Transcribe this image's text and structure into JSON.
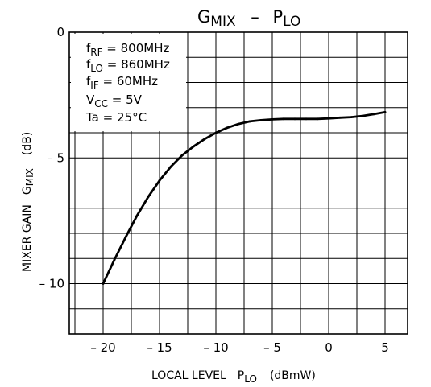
{
  "chart_data": {
    "type": "line",
    "title": {
      "main": "G",
      "main_sub": "MIX",
      "sep": "–",
      "second": "P",
      "second_sub": "LO"
    },
    "xlabel": {
      "text": "LOCAL LEVEL",
      "symbol": "P",
      "symbol_sub": "LO",
      "unit": "(dBmW)"
    },
    "ylabel": {
      "text": "MIXER GAIN",
      "symbol": "G",
      "symbol_sub": "MIX",
      "unit": "(dB)"
    },
    "xlim": [
      -23,
      7
    ],
    "ylim": [
      -12,
      0
    ],
    "x_ticks": [
      -20,
      -15,
      -10,
      -5,
      0,
      5
    ],
    "x_tick_labels": [
      "– 20",
      "– 15",
      "– 10",
      "– 5",
      "0",
      "5"
    ],
    "y_ticks": [
      0,
      -5,
      -10
    ],
    "y_tick_labels": [
      "0",
      "– 5",
      "– 10"
    ],
    "x_grid": [
      -22.5,
      -20,
      -17.5,
      -15,
      -12.5,
      -10,
      -7.5,
      -5,
      -2.5,
      0,
      2.5,
      5
    ],
    "y_grid": [
      -1,
      -2,
      -3,
      -4,
      -5,
      -6,
      -7,
      -8,
      -9,
      -10,
      -11
    ],
    "grid": true,
    "annotations": [
      {
        "main": "f",
        "sub": "RF",
        "rest": " = 800MHz"
      },
      {
        "main": "f",
        "sub": "LO",
        "rest": " = 860MHz"
      },
      {
        "main": "f",
        "sub": "IF",
        "rest": " = 60MHz"
      },
      {
        "main": "V",
        "sub": "CC",
        "rest": " = 5V"
      },
      {
        "main": "Ta = 25°C",
        "sub": "",
        "rest": ""
      }
    ],
    "series": [
      {
        "x": [
          -20,
          -19,
          -18,
          -17,
          -16,
          -15,
          -14,
          -13,
          -12,
          -11,
          -10,
          -9,
          -8,
          -7,
          -6,
          -5,
          -4,
          -3,
          -2,
          -1,
          0,
          1,
          2,
          3,
          4,
          5
        ],
        "y": [
          -10.0,
          -9.05,
          -8.15,
          -7.3,
          -6.55,
          -5.9,
          -5.35,
          -4.9,
          -4.55,
          -4.25,
          -4.0,
          -3.8,
          -3.65,
          -3.55,
          -3.5,
          -3.47,
          -3.45,
          -3.45,
          -3.45,
          -3.45,
          -3.43,
          -3.4,
          -3.38,
          -3.33,
          -3.26,
          -3.18
        ]
      }
    ]
  }
}
